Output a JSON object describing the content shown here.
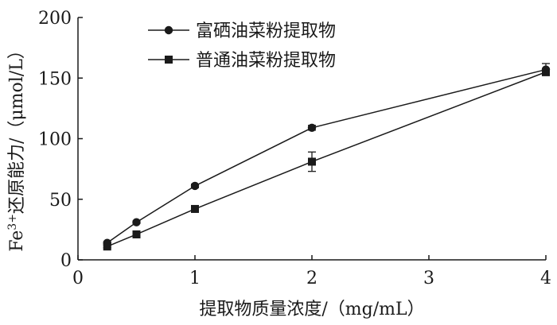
{
  "chart_data": {
    "type": "line",
    "xlabel": "提取物质量浓度/（mg/mL）",
    "ylabel_prefix": "Fe",
    "ylabel_sup": "3+",
    "ylabel_suffix": "还原能力/（μmol/L）",
    "xlim": [
      0,
      4
    ],
    "ylim": [
      0,
      200
    ],
    "xticks": [
      "0",
      "1",
      "2",
      "3",
      "4"
    ],
    "yticks": [
      "0",
      "50",
      "100",
      "150",
      "200"
    ],
    "grid": false,
    "legend_position": "top-left",
    "x": [
      0.25,
      0.5,
      1,
      2,
      4
    ],
    "series": [
      {
        "name": "富硒油菜粉提取物",
        "marker": "circle",
        "values": [
          14,
          31,
          61,
          109,
          157
        ],
        "errors": [
          1,
          1,
          1.5,
          2,
          5
        ]
      },
      {
        "name": "普通油菜粉提取物",
        "marker": "square",
        "values": [
          11,
          21,
          42,
          81,
          155
        ],
        "errors": [
          1,
          1,
          1.5,
          8,
          2
        ]
      }
    ],
    "colors": {
      "line": "#1a1a1a",
      "marker": "#1a1a1a",
      "text": "#1a1a1a"
    }
  }
}
